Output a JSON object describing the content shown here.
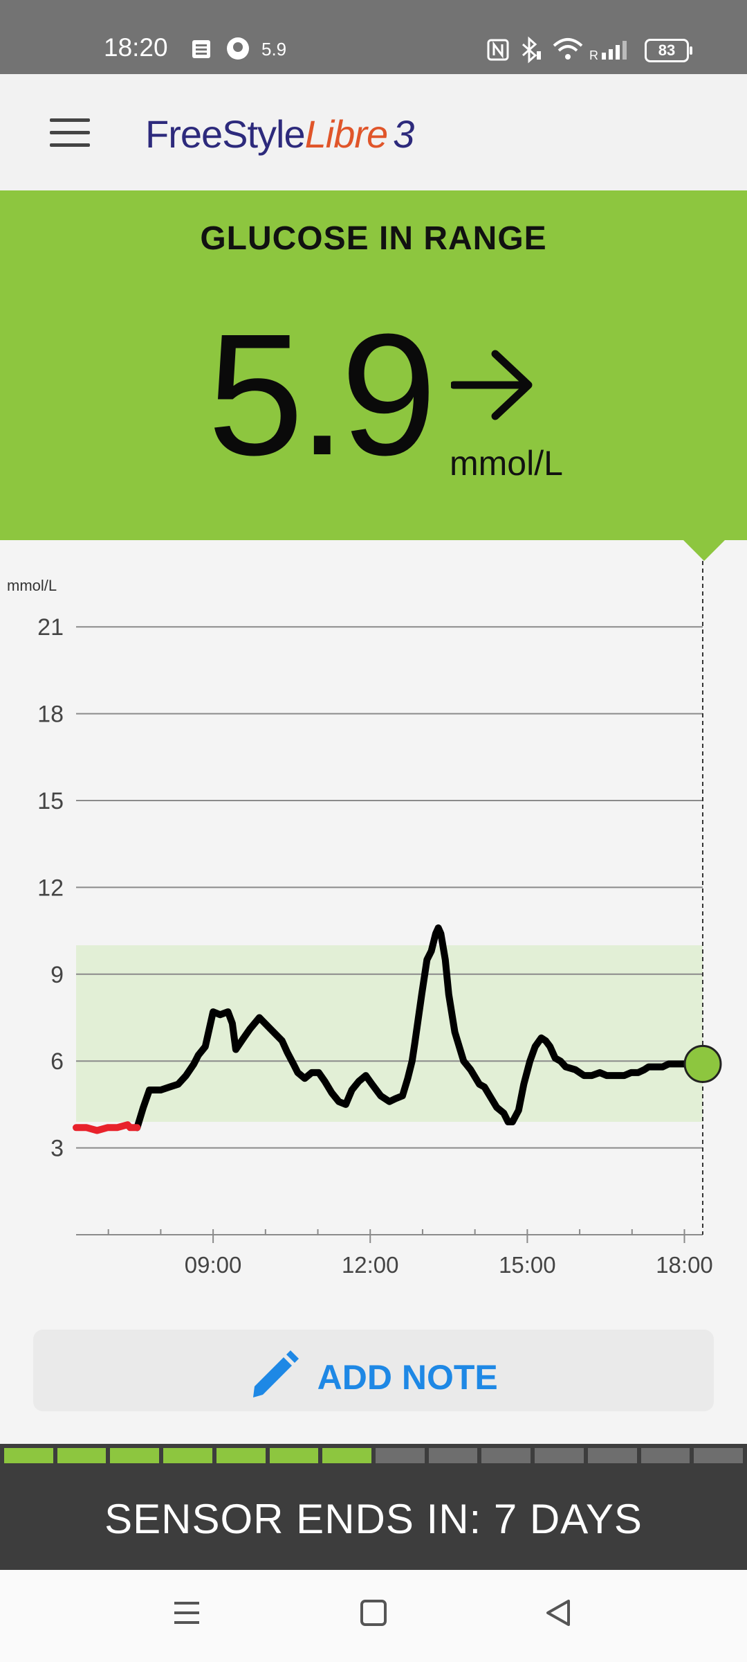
{
  "status_bar": {
    "time": "18:20",
    "glucose_badge": "5.9",
    "battery": "83",
    "icons": [
      "sim-card-icon",
      "libre-sensor-icon",
      "nfc-icon",
      "bluetooth-icon",
      "wifi-icon",
      "signal-icon",
      "battery-icon"
    ]
  },
  "app_bar": {
    "logo_part1": "FreeStyle",
    "logo_part2": "Libre",
    "logo_part3": "3",
    "menu_icon": "hamburger-menu-icon"
  },
  "current": {
    "status": "GLUCOSE IN RANGE",
    "value": "5.9",
    "unit": "mmol/L",
    "trend": "steady",
    "trend_icon": "arrow-right-icon",
    "color": "#8dc63f"
  },
  "chart_data": {
    "type": "line",
    "ylabel": "mmol/L",
    "ylim": [
      0,
      21
    ],
    "yticks": [
      21,
      18,
      15,
      12,
      9,
      6,
      3
    ],
    "xticks": [
      "09:00",
      "12:00",
      "15:00",
      "18:00"
    ],
    "target_range": [
      3.9,
      10.0
    ],
    "target_color": "#e2efd6",
    "low_color": "#e8222b",
    "line_color": "#000000",
    "series": [
      {
        "x": [
          "06:23",
          "06:35",
          "06:47",
          "06:59",
          "07:10",
          "07:22",
          "07:25",
          "07:33",
          "07:40",
          "07:47",
          "08:00",
          "08:10",
          "08:20",
          "08:29",
          "08:38",
          "08:43",
          "08:51",
          "09:00",
          "09:08",
          "09:17",
          "09:22",
          "09:26",
          "09:35",
          "09:42",
          "09:53",
          "10:06",
          "10:19",
          "10:25",
          "10:32",
          "10:37",
          "10:45",
          "10:53",
          "11:01",
          "11:08",
          "11:16",
          "11:24",
          "11:32",
          "11:39",
          "11:47",
          "11:55",
          "12:02",
          "12:12",
          "12:22",
          "12:29",
          "12:37",
          "12:43",
          "12:48",
          "12:51",
          "12:59",
          "13:05",
          "13:10",
          "13:15",
          "13:18",
          "13:21",
          "13:26",
          "13:30",
          "13:37",
          "13:47",
          "13:55",
          "14:05",
          "14:11",
          "14:17",
          "14:25",
          "14:33",
          "14:38",
          "14:43",
          "14:50",
          "14:56",
          "15:03",
          "15:09",
          "15:16",
          "15:21",
          "15:26",
          "15:32",
          "15:38",
          "15:44",
          "15:55",
          "16:05",
          "16:14",
          "16:23",
          "16:31",
          "16:38",
          "16:45",
          "16:51",
          "16:59",
          "17:07",
          "17:14",
          "17:19",
          "17:24",
          "17:30",
          "17:35",
          "17:42",
          "17:48",
          "17:54",
          "18:00",
          "18:05",
          "18:10",
          "18:21"
        ],
        "y": [
          3.7,
          3.7,
          3.6,
          3.7,
          3.7,
          3.8,
          3.7,
          3.7,
          4.4,
          5.0,
          5.0,
          5.1,
          5.2,
          5.5,
          5.9,
          6.2,
          6.5,
          7.7,
          7.6,
          7.7,
          7.3,
          6.4,
          6.8,
          7.1,
          7.5,
          7.1,
          6.7,
          6.3,
          5.9,
          5.6,
          5.4,
          5.6,
          5.6,
          5.3,
          4.9,
          4.6,
          4.5,
          5.0,
          5.3,
          5.5,
          5.2,
          4.8,
          4.6,
          4.7,
          4.8,
          5.4,
          6.0,
          6.6,
          8.3,
          9.5,
          9.8,
          10.4,
          10.6,
          10.4,
          9.5,
          8.3,
          7.0,
          6.0,
          5.7,
          5.2,
          5.1,
          4.8,
          4.4,
          4.2,
          3.9,
          3.9,
          4.3,
          5.2,
          6.0,
          6.5,
          6.8,
          6.7,
          6.5,
          6.1,
          6.0,
          5.8,
          5.7,
          5.5,
          5.5,
          5.6,
          5.5,
          5.5,
          5.5,
          5.5,
          5.6,
          5.6,
          5.7,
          5.8,
          5.8,
          5.8,
          5.8,
          5.9,
          5.9,
          5.9,
          5.9,
          5.9,
          5.9,
          5.9
        ]
      }
    ],
    "current_point": {
      "x": "18:21",
      "y": 5.9
    }
  },
  "add_note": {
    "label": "ADD NOTE",
    "icon": "pencil-icon"
  },
  "sensor": {
    "text": "SENSOR ENDS IN: 7 DAYS",
    "segments_total": 14,
    "segments_filled": 7,
    "fill_color": "#8dc63f",
    "empty_color": "#6e6e6e"
  },
  "nav": {
    "recent_icon": "recent-apps-icon",
    "home_icon": "home-icon",
    "back_icon": "back-icon"
  }
}
